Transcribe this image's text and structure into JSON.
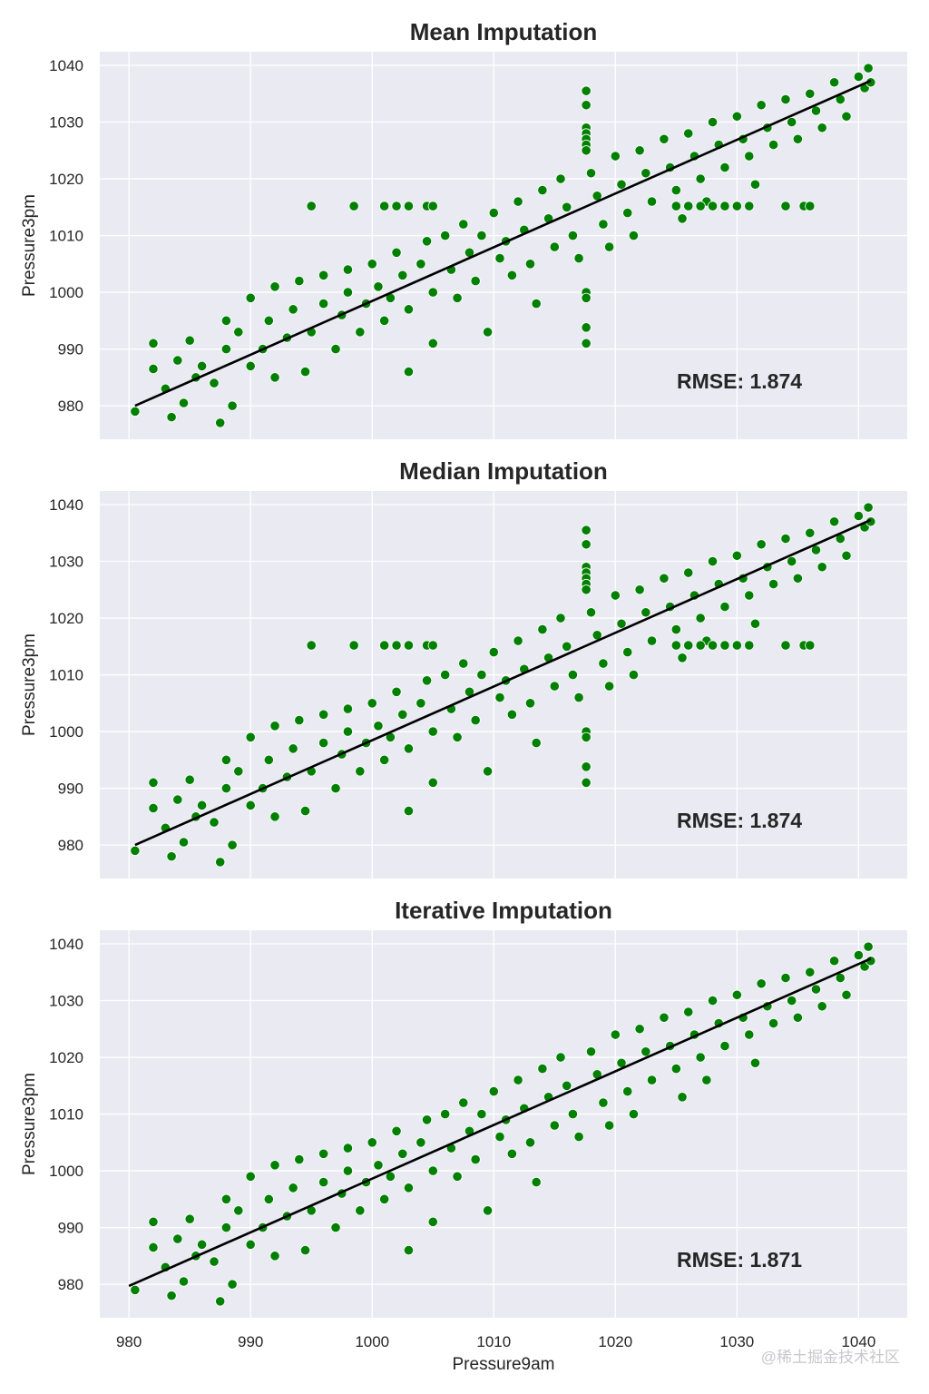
{
  "chart_data": [
    {
      "type": "scatter",
      "title": "Mean Imputation",
      "xlabel": "",
      "ylabel": "Pressure3pm",
      "annotation": "RMSE: 1.874",
      "imputed_style": "mean",
      "fit_line": [
        [
          980.5,
          980.0
        ],
        [
          1041.0,
          1037.3
        ]
      ]
    },
    {
      "type": "scatter",
      "title": "Median Imputation",
      "xlabel": "",
      "ylabel": "Pressure3pm",
      "annotation": "RMSE: 1.874",
      "imputed_style": "median",
      "fit_line": [
        [
          980.5,
          980.0
        ],
        [
          1041.0,
          1037.3
        ]
      ]
    },
    {
      "type": "scatter",
      "title": "Iterative Imputation",
      "xlabel": "Pressure9am",
      "ylabel": "Pressure3pm",
      "annotation": "RMSE: 1.871",
      "imputed_style": "iterative",
      "fit_line": [
        [
          980.0,
          979.7
        ],
        [
          1041.0,
          1037.4
        ]
      ]
    }
  ],
  "shared": {
    "xlim": [
      977.6,
      1044.0
    ],
    "ylim": [
      974.1,
      1042.4
    ],
    "xticks": [
      980,
      990,
      1000,
      1010,
      1020,
      1030,
      1040
    ],
    "yticks": [
      980,
      990,
      1000,
      1010,
      1020,
      1030,
      1040
    ],
    "grid": true,
    "legend": "none",
    "point_color": "#008000",
    "point_edge": "#ffffff",
    "line_color": "#000000",
    "background": "#eaeaf2",
    "observed_points": [
      [
        980.5,
        979
      ],
      [
        982,
        991
      ],
      [
        982,
        986.5
      ],
      [
        983,
        983
      ],
      [
        983.5,
        978
      ],
      [
        984,
        988
      ],
      [
        984.5,
        980.5
      ],
      [
        985,
        991.5
      ],
      [
        985.5,
        985
      ],
      [
        986,
        987
      ],
      [
        987,
        984
      ],
      [
        987.5,
        977
      ],
      [
        988,
        990
      ],
      [
        988,
        995
      ],
      [
        988.5,
        980
      ],
      [
        989,
        993
      ],
      [
        990,
        987
      ],
      [
        990,
        999
      ],
      [
        991,
        990
      ],
      [
        991.5,
        995
      ],
      [
        992,
        1001
      ],
      [
        992,
        985
      ],
      [
        993,
        992
      ],
      [
        993.5,
        997
      ],
      [
        994,
        1002
      ],
      [
        994.5,
        986
      ],
      [
        995,
        993
      ],
      [
        996,
        998
      ],
      [
        996,
        1003
      ],
      [
        997,
        990
      ],
      [
        997.5,
        996
      ],
      [
        998,
        1004
      ],
      [
        998,
        1000
      ],
      [
        999,
        993
      ],
      [
        999.5,
        998
      ],
      [
        1000,
        1005
      ],
      [
        1000.5,
        1001
      ],
      [
        1001,
        995
      ],
      [
        1001.5,
        999
      ],
      [
        1002,
        1007
      ],
      [
        1002.5,
        1003
      ],
      [
        1003,
        997
      ],
      [
        1003,
        986
      ],
      [
        1004,
        1005
      ],
      [
        1004.5,
        1009
      ],
      [
        1005,
        1000
      ],
      [
        1005,
        991
      ],
      [
        1006,
        1010
      ],
      [
        1006.5,
        1004
      ],
      [
        1007,
        999
      ],
      [
        1007.5,
        1012
      ],
      [
        1008,
        1007
      ],
      [
        1008.5,
        1002
      ],
      [
        1009,
        1010
      ],
      [
        1009.5,
        993
      ],
      [
        1010,
        1014
      ],
      [
        1010.5,
        1006
      ],
      [
        1011,
        1009
      ],
      [
        1011.5,
        1003
      ],
      [
        1012,
        1016
      ],
      [
        1012.5,
        1011
      ],
      [
        1013,
        1005
      ],
      [
        1013.5,
        998
      ],
      [
        1014,
        1018
      ],
      [
        1014.5,
        1013
      ],
      [
        1015,
        1008
      ],
      [
        1015.5,
        1020
      ],
      [
        1016,
        1015
      ],
      [
        1016.5,
        1010
      ],
      [
        1017,
        1006
      ],
      [
        1018,
        1021
      ],
      [
        1018.5,
        1017
      ],
      [
        1019,
        1012
      ],
      [
        1019.5,
        1008
      ],
      [
        1020,
        1024
      ],
      [
        1020.5,
        1019
      ],
      [
        1021,
        1014
      ],
      [
        1021.5,
        1010
      ],
      [
        1022,
        1025
      ],
      [
        1022.5,
        1021
      ],
      [
        1023,
        1016
      ],
      [
        1024,
        1027
      ],
      [
        1024.5,
        1022
      ],
      [
        1025,
        1018
      ],
      [
        1025.5,
        1013
      ],
      [
        1026,
        1028
      ],
      [
        1026.5,
        1024
      ],
      [
        1027,
        1020
      ],
      [
        1027.5,
        1016
      ],
      [
        1028,
        1030
      ],
      [
        1028.5,
        1026
      ],
      [
        1029,
        1022
      ],
      [
        1030,
        1031
      ],
      [
        1030.5,
        1027
      ],
      [
        1031,
        1024
      ],
      [
        1031.5,
        1019
      ],
      [
        1032,
        1033
      ],
      [
        1032.5,
        1029
      ],
      [
        1033,
        1026
      ],
      [
        1034,
        1034
      ],
      [
        1034.5,
        1030
      ],
      [
        1035,
        1027
      ],
      [
        1036,
        1035
      ],
      [
        1036.5,
        1032
      ],
      [
        1037,
        1029
      ],
      [
        1038,
        1037
      ],
      [
        1038.5,
        1034
      ],
      [
        1039,
        1031
      ],
      [
        1040,
        1038
      ],
      [
        1040.5,
        1036
      ],
      [
        1041,
        1037
      ],
      [
        1040.8,
        1039.5
      ]
    ],
    "imputed_points": [
      [
        995,
        1015.2
      ],
      [
        998.5,
        1015.2
      ],
      [
        1001,
        1015.2
      ],
      [
        1002,
        1015.2
      ],
      [
        1003,
        1015.2
      ],
      [
        1004.5,
        1015.2
      ],
      [
        1005,
        1015.2
      ],
      [
        1025,
        1015.2
      ],
      [
        1026,
        1015.2
      ],
      [
        1027,
        1015.2
      ],
      [
        1028,
        1015.2
      ],
      [
        1029,
        1015.2
      ],
      [
        1030,
        1015.2
      ],
      [
        1031,
        1015.2
      ],
      [
        1034,
        1015.2
      ],
      [
        1035.5,
        1015.2
      ],
      [
        1036,
        1015.2
      ],
      [
        1017.6,
        1035.5
      ],
      [
        1017.6,
        1033
      ],
      [
        1017.6,
        1029
      ],
      [
        1017.6,
        1028
      ],
      [
        1017.6,
        1027
      ],
      [
        1017.6,
        1026
      ],
      [
        1017.6,
        1025
      ],
      [
        1017.6,
        1000
      ],
      [
        1017.6,
        999
      ],
      [
        1017.6,
        993.8
      ],
      [
        1017.6,
        991
      ]
    ]
  },
  "watermark": "@稀土掘金技术社区"
}
